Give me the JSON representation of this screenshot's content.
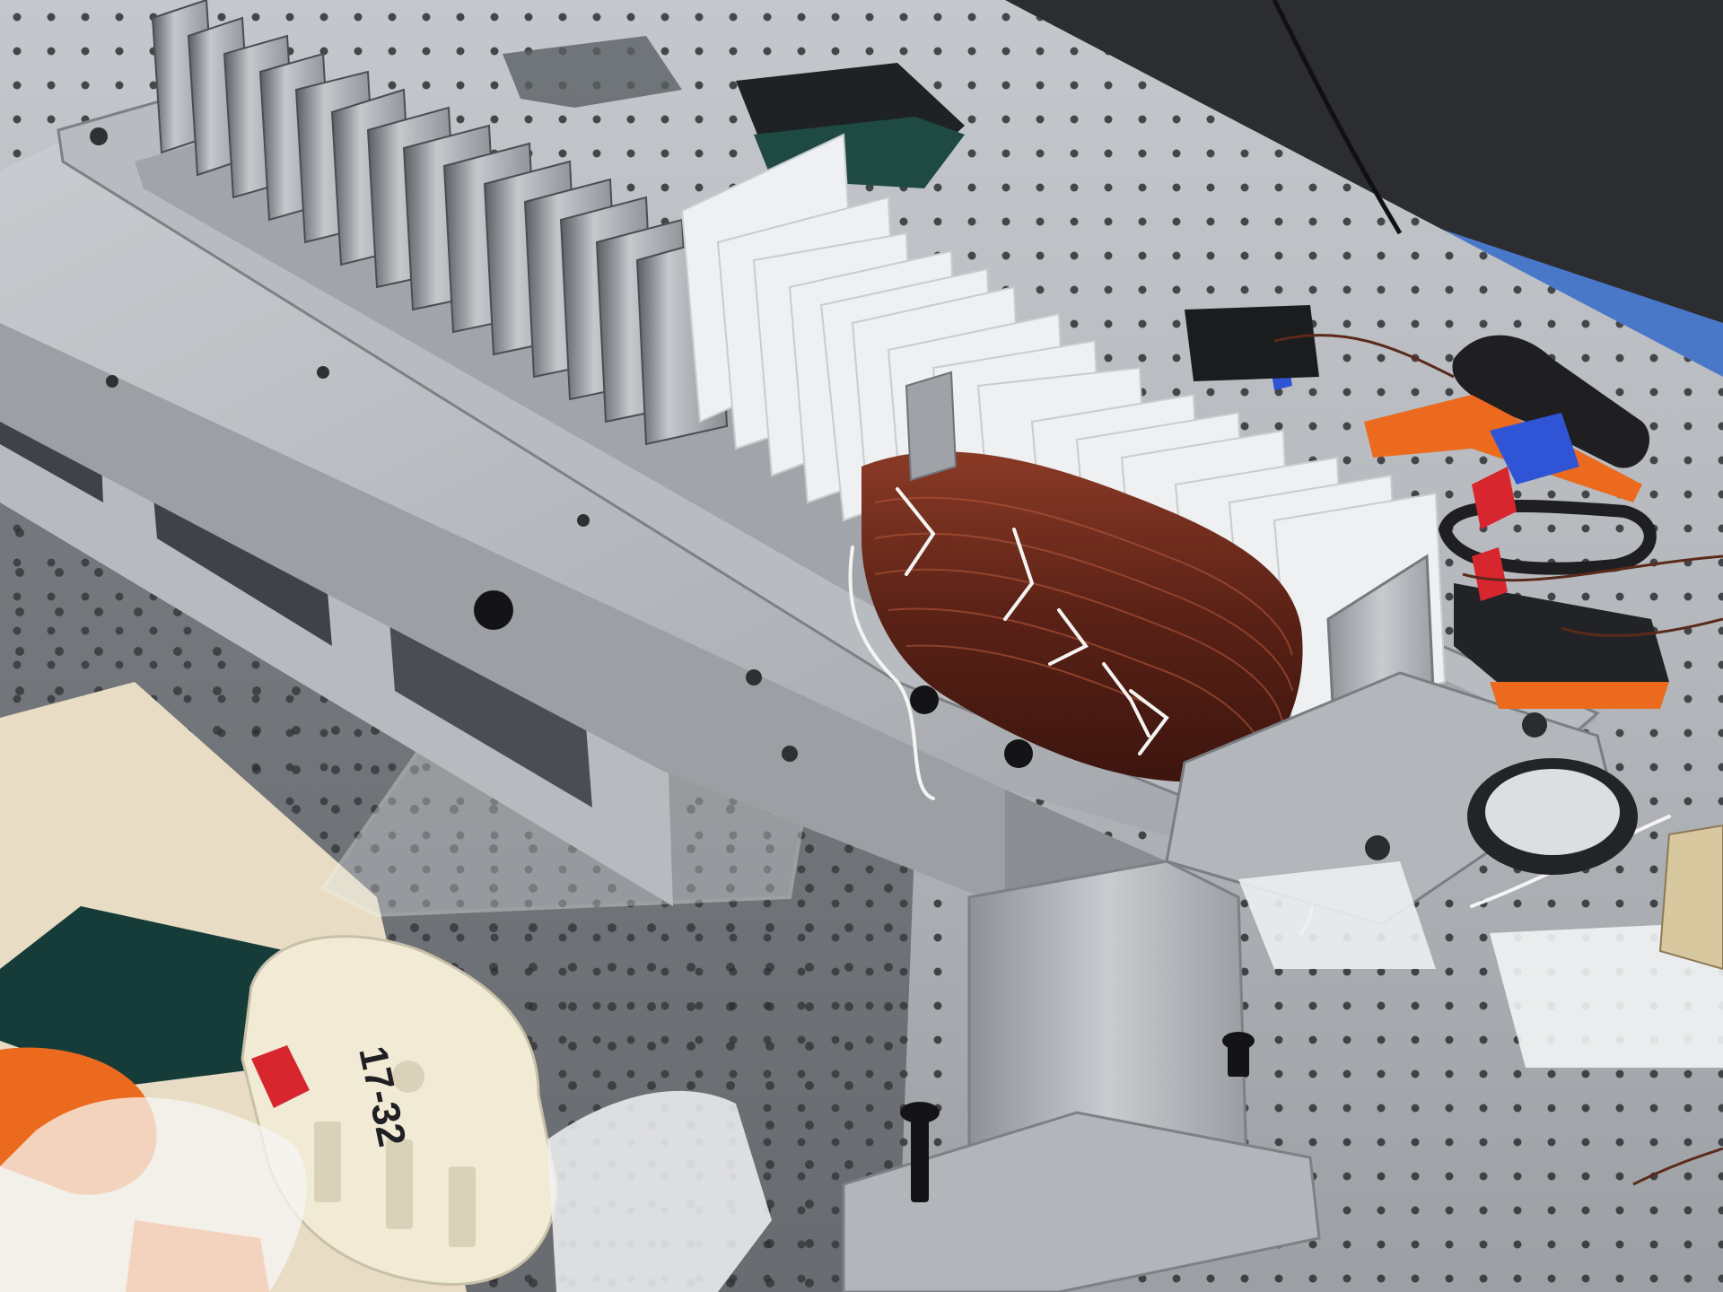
{
  "photo": {
    "subject": "lab bench photo",
    "handwritten_label": "17-32",
    "colors": {
      "bench_top": "#b9bcc1",
      "bench_shadow": "#3e4146",
      "aluminum_light": "#d6d8db",
      "aluminum_mid": "#a9acb1",
      "aluminum_dark": "#6f7277",
      "copper_coil": "#6a2a1c",
      "copper_highlight": "#b3583a",
      "paper": "#eef0f2",
      "tape_blue": "#2f55d6",
      "tape_red": "#d7262d",
      "handle_orange": "#ec6a1e",
      "grip_black": "#1f1f21",
      "dark_pad": "#153c38",
      "cream_part": "#f1ebd6",
      "wall_blue": "#4a78c9",
      "ink": "#1f1f24"
    }
  }
}
